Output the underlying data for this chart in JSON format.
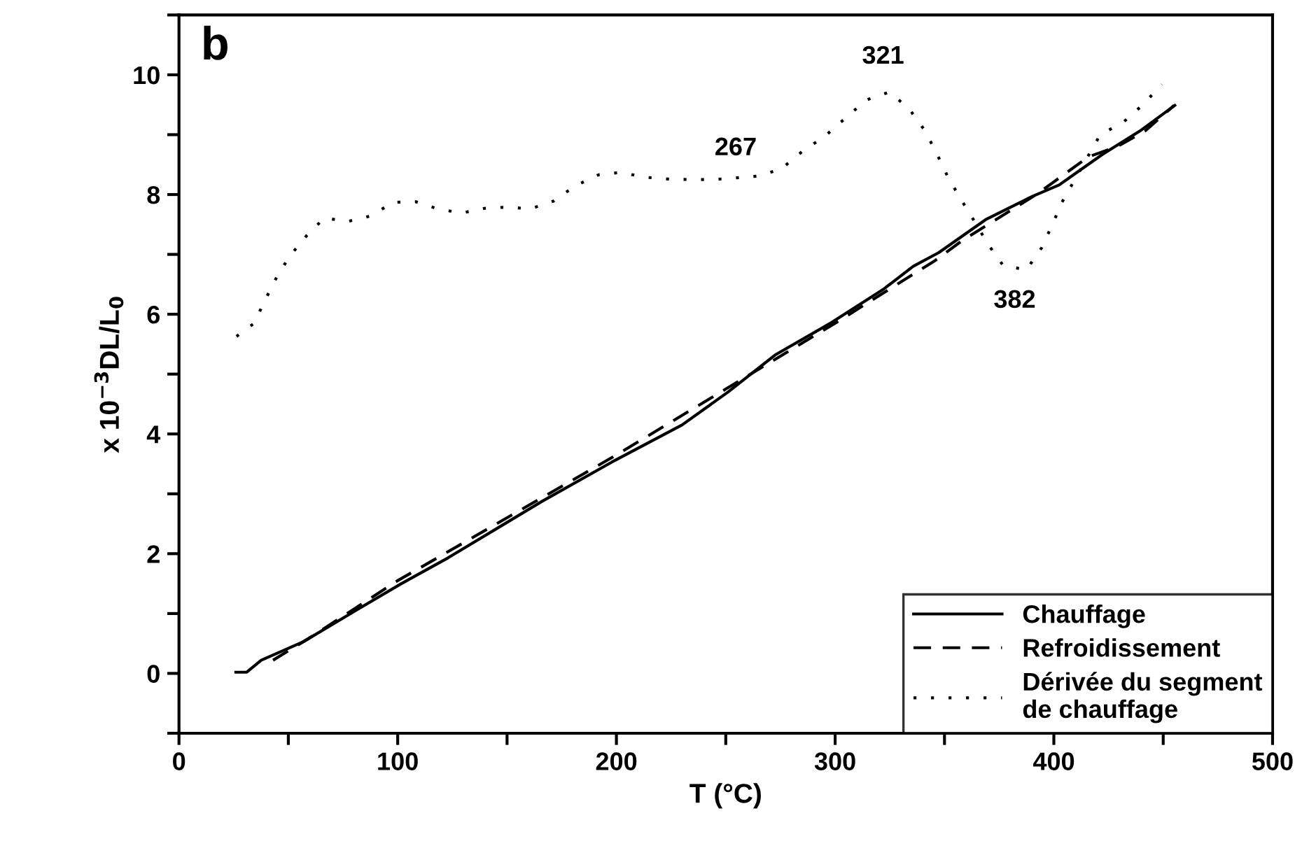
{
  "chart_data": {
    "type": "line",
    "title": "b",
    "xlabel": "T (°C)",
    "ylabel": "x 10$^{−3}$DL/L$_{0}$",
    "xlim": [
      0,
      500
    ],
    "ylim": [
      -1,
      11
    ],
    "xticks": [
      0,
      {
        "value": 50,
        "label": null
      },
      100,
      {
        "value": 150,
        "label": null
      },
      200,
      {
        "value": 250,
        "label": null
      },
      300,
      {
        "value": 350,
        "label": null
      },
      400,
      {
        "value": 450,
        "label": null
      },
      500
    ],
    "yticks": [
      {
        "value": -1,
        "label": null
      },
      0,
      {
        "value": 1,
        "label": null
      },
      2,
      {
        "value": 3,
        "label": null
      },
      4,
      {
        "value": 5,
        "label": null
      },
      6,
      {
        "value": 7,
        "label": null
      },
      8,
      {
        "value": 9,
        "label": null
      },
      10,
      {
        "value": 11,
        "label": null
      }
    ],
    "grid": false,
    "legend": "bottom right",
    "marker": "none",
    "series": [
      {
        "name": "Chauffage",
        "color": "#000000",
        "line_style": "solid",
        "x": [
          26,
          31,
          37.6,
          56.9,
          80.3,
          101.7,
          123,
          144.4,
          165.8,
          197.9,
          230,
          251,
          272.6,
          298.3,
          321.8,
          335.7,
          347.4,
          368.8,
          390.2,
          402.4,
          422.2,
          439.3,
          455.3
        ],
        "values": [
          0.02,
          0.02,
          0.22,
          0.53,
          1.04,
          1.5,
          1.93,
          2.4,
          2.87,
          3.53,
          4.15,
          4.7,
          5.32,
          5.86,
          6.41,
          6.8,
          7.03,
          7.58,
          7.97,
          8.16,
          8.67,
          9.06,
          9.49
        ]
      },
      {
        "name": "Refroidissement",
        "color": "#000000",
        "line_style": "dashed",
        "x": [
          43,
          60,
          100,
          150,
          200,
          250,
          300,
          345.8,
          358.1,
          392,
          415.8,
          429,
          442,
          455
        ],
        "values": [
          0.22,
          0.6,
          1.55,
          2.6,
          3.65,
          4.75,
          5.85,
          6.9,
          7.23,
          8.0,
          8.63,
          8.8,
          9.07,
          9.49
        ]
      },
      {
        "name": "Dérivée du segment\nde chauffage",
        "color": "#000000",
        "line_style": "dotted",
        "x": [
          26.3,
          34.4,
          39,
          44.4,
          50.4,
          58.3,
          66.5,
          77.1,
          87.4,
          98.1,
          108.3,
          118.4,
          129,
          139.7,
          150.2,
          160.5,
          171.2,
          181.4,
          191.9,
          202.1,
          212.8,
          223.1,
          233.8,
          244.2,
          254.9,
          265.2,
          275.4,
          285,
          295.5,
          305.1,
          314.3,
          324.6,
          333.5,
          341,
          346.4,
          351.7,
          357.7,
          363.9,
          369.9,
          376.7,
          387.4,
          394.4,
          399.1,
          403.7,
          421.2,
          431.8,
          440.4,
          449.4
        ],
        "values": [
          5.63,
          5.85,
          6.21,
          6.6,
          6.96,
          7.31,
          7.61,
          7.55,
          7.64,
          7.87,
          7.88,
          7.76,
          7.69,
          7.77,
          7.79,
          7.76,
          7.89,
          8.15,
          8.33,
          8.37,
          8.29,
          8.26,
          8.25,
          8.25,
          8.28,
          8.31,
          8.43,
          8.72,
          8.98,
          9.29,
          9.58,
          9.71,
          9.45,
          9.07,
          8.69,
          8.28,
          7.91,
          7.54,
          7.17,
          6.82,
          6.74,
          7.11,
          7.48,
          7.87,
          9.0,
          9.21,
          9.49,
          9.84
        ]
      }
    ],
    "annotations": [
      {
        "text": "321",
        "x": 324.6,
        "y": 9.71
      },
      {
        "text": "267",
        "x": 265.2,
        "y": 8.31
      },
      {
        "text": "382",
        "x": 387.4,
        "y": 6.74
      }
    ]
  }
}
